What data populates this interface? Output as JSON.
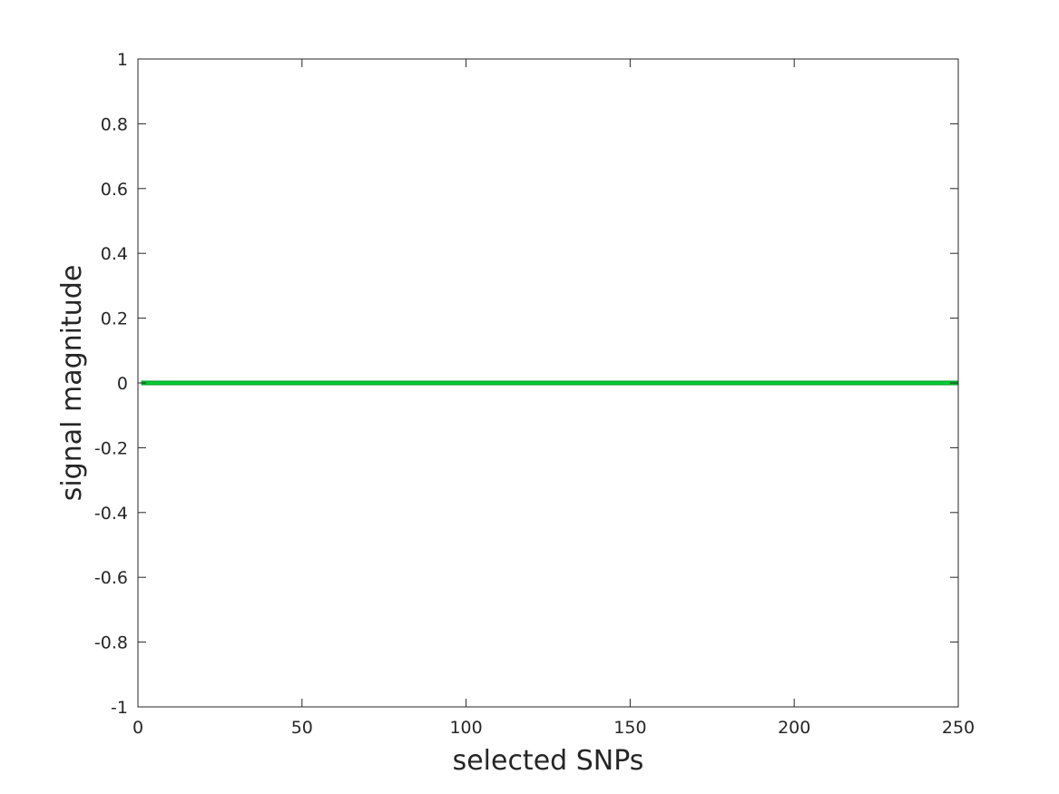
{
  "chart_data": {
    "type": "line",
    "title": "",
    "xlabel": "selected SNPs",
    "ylabel": "signal magnitude",
    "xlim": [
      0,
      250
    ],
    "ylim": [
      -1,
      1
    ],
    "x_ticks": [
      0,
      50,
      100,
      150,
      200,
      250
    ],
    "x_tick_labels": [
      "0",
      "50",
      "100",
      "150",
      "200",
      "250"
    ],
    "y_ticks": [
      -1,
      -0.8,
      -0.6,
      -0.4,
      -0.2,
      0,
      0.2,
      0.4,
      0.6,
      0.8,
      1
    ],
    "y_tick_labels": [
      "-1",
      "-0.8",
      "-0.6",
      "-0.4",
      "-0.2",
      "0",
      "0.2",
      "0.4",
      "0.6",
      "0.8",
      "1"
    ],
    "grid": false,
    "legend": "none",
    "series": [
      {
        "color": "#00cc33",
        "x": [
          1,
          250
        ],
        "y": [
          0,
          0
        ]
      }
    ]
  }
}
